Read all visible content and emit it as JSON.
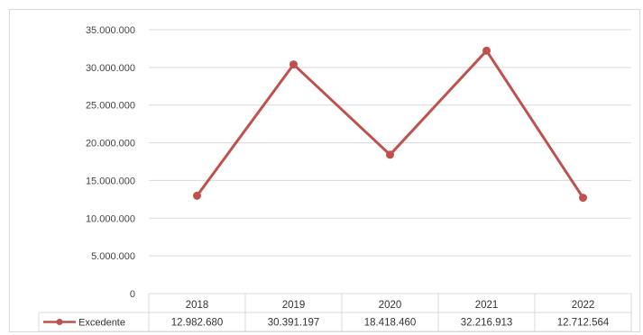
{
  "chart_data": {
    "type": "line",
    "title": "",
    "xlabel": "",
    "ylabel": "",
    "categories": [
      "2018",
      "2019",
      "2020",
      "2021",
      "2022"
    ],
    "series": [
      {
        "name": "Excedente",
        "values": [
          12982680,
          30391197,
          18418460,
          32216913,
          12712564
        ],
        "value_labels": [
          "12.982.680",
          "30.391.197",
          "18.418.460",
          "32.216.913",
          "12.712.564"
        ],
        "color": "#c0504d"
      }
    ],
    "ylim": [
      0,
      35000000
    ],
    "y_ticks": [
      0,
      5000000,
      10000000,
      15000000,
      20000000,
      25000000,
      30000000,
      35000000
    ],
    "y_tick_labels": [
      "0",
      "5.000.000",
      "10.000.000",
      "15.000.000",
      "20.000.000",
      "25.000.000",
      "30.000.000",
      "35.000.000"
    ],
    "grid": true,
    "legend": "bottom-left data table",
    "gridline_color": "#d9d9d9"
  }
}
